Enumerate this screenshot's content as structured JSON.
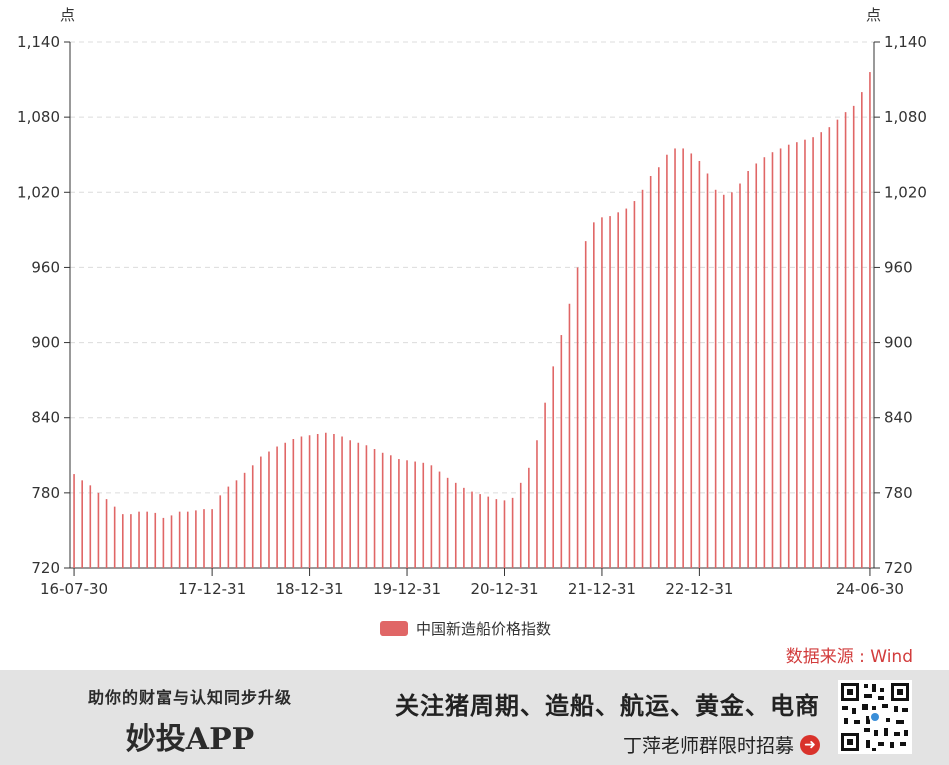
{
  "chart_data": {
    "type": "bar",
    "series": [
      {
        "name": "中国新造船价格指数",
        "color": "#e06666",
        "values": [
          795,
          790,
          786,
          780,
          775,
          769,
          763,
          763,
          765,
          765,
          764,
          760,
          762,
          765,
          765,
          766,
          767,
          767,
          778,
          785,
          790,
          796,
          802,
          809,
          813,
          817,
          820,
          823,
          825,
          826,
          827,
          828,
          827,
          825,
          822,
          820,
          818,
          815,
          812,
          810,
          807,
          806,
          805,
          804,
          802,
          797,
          792,
          788,
          784,
          781,
          779,
          777,
          775,
          774,
          776,
          788,
          800,
          822,
          852,
          881,
          906,
          931,
          960,
          981,
          996,
          1000,
          1001,
          1004,
          1007,
          1013,
          1022,
          1033,
          1040,
          1050,
          1055,
          1055,
          1051,
          1045,
          1035,
          1022,
          1018,
          1020,
          1027,
          1037,
          1043,
          1048,
          1052,
          1055,
          1058,
          1060,
          1062,
          1064,
          1068,
          1072,
          1078,
          1084,
          1089,
          1100,
          1116
        ]
      }
    ],
    "x_tick_labels": [
      "16-07-30",
      "17-12-31",
      "18-12-31",
      "19-12-31",
      "20-12-31",
      "21-12-31",
      "22-12-31",
      "24-06-30"
    ],
    "x_tick_indices": [
      0,
      17,
      29,
      41,
      53,
      65,
      77,
      98
    ],
    "y_ticks": [
      "720",
      "780",
      "840",
      "900",
      "960",
      "1,020",
      "1,080",
      "1,140"
    ],
    "ylim": [
      720,
      1140
    ],
    "y_unit_left": "点",
    "y_unit_right": "点",
    "grid": true,
    "legend": "bottom-center"
  },
  "source": "数据来源 : Wind",
  "banner": {
    "tagline": "助你的财富与认知同步升级",
    "app_name": "妙投APP",
    "topics": "关注猪周期、造船、航运、黄金、电商",
    "recruit": "丁萍老师群限时招募"
  }
}
